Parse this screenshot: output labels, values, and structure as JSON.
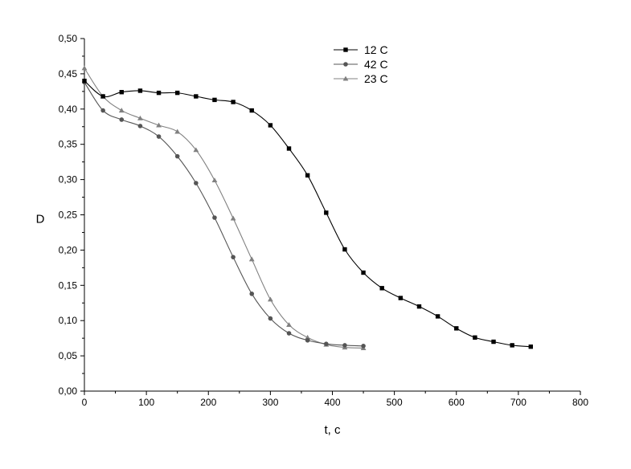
{
  "chart_data": {
    "type": "line",
    "xlabel": "t, c",
    "ylabel": "D",
    "xlim": [
      0,
      800
    ],
    "ylim": [
      0.0,
      0.5
    ],
    "x_ticks": [
      "0",
      "100",
      "200",
      "300",
      "400",
      "500",
      "600",
      "700",
      "800"
    ],
    "y_ticks": [
      "0,00",
      "0,05",
      "0,10",
      "0,15",
      "0,20",
      "0,25",
      "0,30",
      "0,35",
      "0,40",
      "0,45",
      "0,50"
    ],
    "grid": false,
    "legend_position": "top-center",
    "series": [
      {
        "name": "12 C",
        "marker": "square",
        "color": "#000000",
        "x": [
          0,
          30,
          60,
          90,
          120,
          150,
          180,
          210,
          240,
          270,
          300,
          330,
          360,
          390,
          420,
          450,
          480,
          510,
          540,
          570,
          600,
          630,
          660,
          690,
          720
        ],
        "y": [
          0.44,
          0.418,
          0.424,
          0.426,
          0.423,
          0.423,
          0.418,
          0.413,
          0.41,
          0.398,
          0.377,
          0.344,
          0.306,
          0.253,
          0.201,
          0.168,
          0.146,
          0.132,
          0.12,
          0.106,
          0.089,
          0.076,
          0.07,
          0.065,
          0.063
        ]
      },
      {
        "name": "42 C",
        "marker": "circle",
        "color": "#555555",
        "x": [
          0,
          30,
          60,
          90,
          120,
          150,
          180,
          210,
          240,
          270,
          300,
          330,
          360,
          390,
          420,
          450
        ],
        "y": [
          0.438,
          0.398,
          0.385,
          0.376,
          0.361,
          0.333,
          0.295,
          0.246,
          0.19,
          0.138,
          0.103,
          0.082,
          0.072,
          0.067,
          0.065,
          0.064
        ]
      },
      {
        "name": "23 C",
        "marker": "triangle",
        "color": "#808080",
        "x": [
          0,
          30,
          60,
          90,
          120,
          150,
          180,
          210,
          240,
          270,
          300,
          330,
          360,
          390,
          420,
          450
        ],
        "y": [
          0.458,
          0.418,
          0.398,
          0.387,
          0.377,
          0.368,
          0.342,
          0.299,
          0.245,
          0.187,
          0.13,
          0.094,
          0.076,
          0.066,
          0.062,
          0.061
        ]
      }
    ]
  }
}
